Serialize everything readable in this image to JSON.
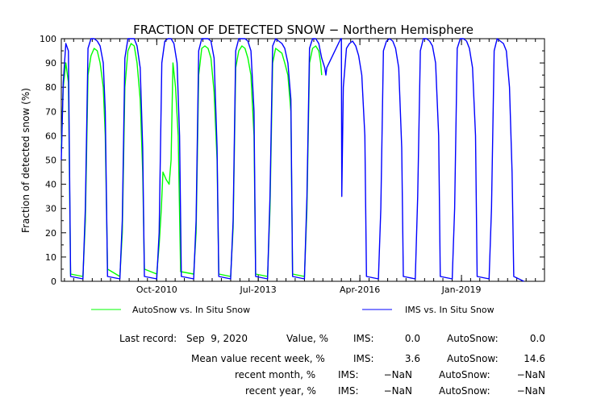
{
  "chart_data": {
    "type": "line",
    "title": "FRACTION OF DETECTED SNOW − Northern Hemisphere",
    "ylabel": "Fraction of detected snow (%)",
    "xlabel": "",
    "ylim": [
      0,
      100
    ],
    "yticks": [
      0,
      10,
      20,
      30,
      40,
      50,
      60,
      70,
      80,
      90,
      100
    ],
    "xlim": [
      "2008-03-01",
      "2021-04-01"
    ],
    "xticks": [
      {
        "date": "2010-10-01",
        "label": "Oct-2010"
      },
      {
        "date": "2013-07-01",
        "label": "Jul-2013"
      },
      {
        "date": "2016-04-01",
        "label": "Apr-2016"
      },
      {
        "date": "2019-01-01",
        "label": "Jan-2019"
      }
    ],
    "grid": false,
    "legend_position": "bottom",
    "series": [
      {
        "name": "AutoSnow vs. In Situ Snow",
        "color": "#00ff00",
        "points": [
          [
            "2008-03-01",
            55
          ],
          [
            "2008-03-20",
            80
          ],
          [
            "2008-04-15",
            90
          ],
          [
            "2008-05-10",
            82
          ],
          [
            "2008-06-01",
            3
          ],
          [
            "2008-10-01",
            2
          ],
          [
            "2008-10-25",
            25
          ],
          [
            "2008-11-20",
            85
          ],
          [
            "2008-12-20",
            93
          ],
          [
            "2009-01-20",
            96
          ],
          [
            "2009-02-20",
            95
          ],
          [
            "2009-03-20",
            90
          ],
          [
            "2009-04-20",
            80
          ],
          [
            "2009-05-10",
            60
          ],
          [
            "2009-06-01",
            5
          ],
          [
            "2009-10-01",
            2
          ],
          [
            "2009-10-25",
            20
          ],
          [
            "2009-11-20",
            80
          ],
          [
            "2009-12-20",
            95
          ],
          [
            "2010-01-20",
            98
          ],
          [
            "2010-02-20",
            97
          ],
          [
            "2010-03-20",
            90
          ],
          [
            "2010-04-20",
            75
          ],
          [
            "2010-05-15",
            45
          ],
          [
            "2010-06-01",
            5
          ],
          [
            "2010-10-01",
            3
          ],
          [
            "2010-10-25",
            15
          ],
          [
            "2010-11-15",
            30
          ],
          [
            "2010-12-01",
            45
          ],
          [
            "2011-01-01",
            42
          ],
          [
            "2011-02-01",
            40
          ],
          [
            "2011-02-20",
            50
          ],
          [
            "2011-03-10",
            90
          ],
          [
            "2011-04-05",
            80
          ],
          [
            "2011-05-01",
            60
          ],
          [
            "2011-05-25",
            4
          ],
          [
            "2011-10-01",
            3
          ],
          [
            "2011-10-25",
            20
          ],
          [
            "2011-11-20",
            85
          ],
          [
            "2011-12-20",
            96
          ],
          [
            "2012-01-20",
            97
          ],
          [
            "2012-02-20",
            96
          ],
          [
            "2012-03-20",
            92
          ],
          [
            "2012-04-20",
            78
          ],
          [
            "2012-05-20",
            50
          ],
          [
            "2012-06-05",
            3
          ],
          [
            "2012-10-01",
            2
          ],
          [
            "2012-10-25",
            22
          ],
          [
            "2012-11-20",
            88
          ],
          [
            "2012-12-20",
            95
          ],
          [
            "2013-01-20",
            97
          ],
          [
            "2013-02-20",
            96
          ],
          [
            "2013-03-20",
            92
          ],
          [
            "2013-04-20",
            85
          ],
          [
            "2013-05-20",
            60
          ],
          [
            "2013-06-05",
            3
          ],
          [
            "2013-10-01",
            2
          ],
          [
            "2013-10-25",
            30
          ],
          [
            "2013-11-20",
            90
          ],
          [
            "2013-12-20",
            96
          ],
          [
            "2014-01-20",
            95
          ],
          [
            "2014-02-20",
            94
          ],
          [
            "2014-03-20",
            90
          ],
          [
            "2014-04-20",
            85
          ],
          [
            "2014-05-20",
            70
          ],
          [
            "2014-06-05",
            3
          ],
          [
            "2014-10-01",
            2
          ],
          [
            "2014-10-25",
            30
          ],
          [
            "2014-11-20",
            90
          ],
          [
            "2014-12-20",
            96
          ],
          [
            "2015-01-20",
            97
          ],
          [
            "2015-02-20",
            95
          ],
          [
            "2015-03-10",
            90
          ],
          [
            "2015-03-20",
            85
          ]
        ]
      },
      {
        "name": "IMS vs. In Situ Snow",
        "color": "#0000ff",
        "points": [
          [
            "2008-03-01",
            50
          ],
          [
            "2008-03-20",
            82
          ],
          [
            "2008-04-15",
            98
          ],
          [
            "2008-05-10",
            95
          ],
          [
            "2008-06-01",
            2
          ],
          [
            "2008-10-01",
            1
          ],
          [
            "2008-10-25",
            30
          ],
          [
            "2008-11-20",
            96
          ],
          [
            "2008-12-20",
            100
          ],
          [
            "2009-01-20",
            100
          ],
          [
            "2009-02-20",
            99
          ],
          [
            "2009-03-20",
            97
          ],
          [
            "2009-04-20",
            90
          ],
          [
            "2009-05-10",
            70
          ],
          [
            "2009-06-01",
            2
          ],
          [
            "2009-10-01",
            1
          ],
          [
            "2009-10-25",
            25
          ],
          [
            "2009-11-20",
            92
          ],
          [
            "2009-12-20",
            100
          ],
          [
            "2010-01-20",
            100
          ],
          [
            "2010-02-20",
            100
          ],
          [
            "2010-03-20",
            97
          ],
          [
            "2010-04-20",
            88
          ],
          [
            "2010-05-15",
            55
          ],
          [
            "2010-06-01",
            2
          ],
          [
            "2010-10-01",
            1
          ],
          [
            "2010-10-25",
            20
          ],
          [
            "2010-11-20",
            90
          ],
          [
            "2010-12-20",
            99
          ],
          [
            "2011-01-20",
            100
          ],
          [
            "2011-02-20",
            100
          ],
          [
            "2011-03-20",
            98
          ],
          [
            "2011-04-20",
            90
          ],
          [
            "2011-05-15",
            60
          ],
          [
            "2011-06-01",
            2
          ],
          [
            "2011-10-01",
            1
          ],
          [
            "2011-10-25",
            25
          ],
          [
            "2011-11-20",
            95
          ],
          [
            "2011-12-20",
            100
          ],
          [
            "2012-01-20",
            100
          ],
          [
            "2012-02-20",
            100
          ],
          [
            "2012-03-20",
            99
          ],
          [
            "2012-04-20",
            92
          ],
          [
            "2012-05-20",
            55
          ],
          [
            "2012-06-05",
            2
          ],
          [
            "2012-10-01",
            1
          ],
          [
            "2012-10-25",
            25
          ],
          [
            "2012-11-20",
            95
          ],
          [
            "2012-12-20",
            100
          ],
          [
            "2013-01-20",
            100
          ],
          [
            "2013-02-20",
            100
          ],
          [
            "2013-03-20",
            99
          ],
          [
            "2013-04-20",
            95
          ],
          [
            "2013-05-20",
            70
          ],
          [
            "2013-06-05",
            2
          ],
          [
            "2013-10-01",
            1
          ],
          [
            "2013-10-25",
            35
          ],
          [
            "2013-11-20",
            97
          ],
          [
            "2013-12-20",
            100
          ],
          [
            "2014-01-20",
            99
          ],
          [
            "2014-02-20",
            98
          ],
          [
            "2014-03-20",
            96
          ],
          [
            "2014-04-20",
            90
          ],
          [
            "2014-05-20",
            75
          ],
          [
            "2014-06-05",
            2
          ],
          [
            "2014-10-01",
            1
          ],
          [
            "2014-10-25",
            35
          ],
          [
            "2014-11-20",
            96
          ],
          [
            "2014-12-20",
            100
          ],
          [
            "2015-01-20",
            100
          ],
          [
            "2015-02-20",
            98
          ],
          [
            "2015-03-20",
            92
          ],
          [
            "2015-04-20",
            88
          ],
          [
            "2015-05-01",
            85
          ],
          [
            "2015-05-10",
            88
          ],
          [
            "2015-09-25",
            100
          ],
          [
            "2015-10-01",
            100
          ],
          [
            "2015-10-05",
            35
          ],
          [
            "2015-10-20",
            80
          ],
          [
            "2015-11-20",
            96
          ],
          [
            "2015-12-20",
            98
          ],
          [
            "2016-01-20",
            99
          ],
          [
            "2016-02-20",
            97
          ],
          [
            "2016-03-20",
            93
          ],
          [
            "2016-04-20",
            85
          ],
          [
            "2016-05-20",
            60
          ],
          [
            "2016-06-05",
            2
          ],
          [
            "2016-10-01",
            1
          ],
          [
            "2016-10-25",
            30
          ],
          [
            "2016-11-20",
            95
          ],
          [
            "2016-12-20",
            99
          ],
          [
            "2017-01-20",
            100
          ],
          [
            "2017-02-20",
            99
          ],
          [
            "2017-03-20",
            96
          ],
          [
            "2017-04-20",
            88
          ],
          [
            "2017-05-20",
            55
          ],
          [
            "2017-06-05",
            2
          ],
          [
            "2017-10-01",
            1
          ],
          [
            "2017-10-25",
            35
          ],
          [
            "2017-11-20",
            95
          ],
          [
            "2017-12-20",
            100
          ],
          [
            "2018-01-20",
            100
          ],
          [
            "2018-02-20",
            99
          ],
          [
            "2018-03-20",
            97
          ],
          [
            "2018-04-20",
            90
          ],
          [
            "2018-05-20",
            60
          ],
          [
            "2018-06-05",
            2
          ],
          [
            "2018-10-01",
            1
          ],
          [
            "2018-10-25",
            30
          ],
          [
            "2018-11-20",
            96
          ],
          [
            "2018-12-20",
            100
          ],
          [
            "2019-01-20",
            100
          ],
          [
            "2019-02-20",
            99
          ],
          [
            "2019-03-20",
            96
          ],
          [
            "2019-04-20",
            88
          ],
          [
            "2019-05-20",
            60
          ],
          [
            "2019-06-05",
            2
          ],
          [
            "2019-10-01",
            1
          ],
          [
            "2019-10-25",
            30
          ],
          [
            "2019-11-20",
            95
          ],
          [
            "2019-12-20",
            100
          ],
          [
            "2020-01-20",
            99
          ],
          [
            "2020-02-20",
            98
          ],
          [
            "2020-03-20",
            95
          ],
          [
            "2020-04-20",
            80
          ],
          [
            "2020-05-15",
            45
          ],
          [
            "2020-06-01",
            2
          ],
          [
            "2020-09-09",
            0
          ]
        ]
      }
    ]
  },
  "stats": {
    "last_record_label": "Last record:",
    "last_record_date": "Sep  9, 2020",
    "value_label": "Value, %",
    "mean_week_label": "Mean value recent week, %",
    "month_label": "recent month, %",
    "year_label": "recent year, %",
    "ims_label": "IMS:",
    "autosnow_label": "AutoSnow:",
    "value_ims": "0.0",
    "value_autosnow": "0.0",
    "week_ims": "3.6",
    "week_autosnow": "14.6",
    "month_ims": "−NaN",
    "month_autosnow": "−NaN",
    "year_ims": "−NaN",
    "year_autosnow": "−NaN"
  }
}
